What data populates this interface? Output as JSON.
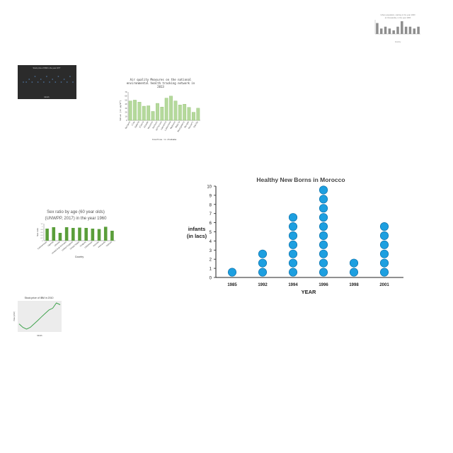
{
  "chart_data": [
    {
      "type": "scatter",
      "title": "Healthy New Borns in Morocco",
      "xlabel": "YEAR",
      "ylabel": "infants\n(in lacs)",
      "ylabel_lines": [
        "infants",
        "(in lacs)"
      ],
      "categories": [
        "1985",
        "1992",
        "1994",
        "1996",
        "1998",
        "2001"
      ],
      "values": [
        1,
        3,
        7,
        10,
        2,
        6
      ],
      "yticks": [
        "0",
        "1",
        "2",
        "3",
        "4",
        "5",
        "6",
        "7",
        "8",
        "9",
        "10"
      ],
      "ylim": [
        0,
        10
      ],
      "grid": false,
      "colors": {
        "dot": "#1d9fe0",
        "dot_stroke": "#0a6fa8",
        "title": "#444444",
        "axis": "#222222"
      }
    },
    {
      "type": "bar",
      "title": "Air quality Measures on the National Environmental Health Tracking Network in 2013",
      "title_lines": [
        "Air quality Measures on the national",
        "environmental health tracking network in",
        "2013"
      ],
      "xlabel": "Counties in Alabama",
      "ylabel": "Value (in µg/m³)",
      "categories": [
        "Baldwin",
        "Clay",
        "DeKalb",
        "Elmore",
        "Etowah",
        "Houston",
        "Jackson",
        "Jefferson",
        "Lawrence",
        "Limestone",
        "Madison",
        "Mobile",
        "Montgomery",
        "Morgan",
        "Russell",
        "Shelby"
      ],
      "values": [
        48,
        50,
        45,
        35,
        36,
        22,
        42,
        33,
        55,
        60,
        48,
        38,
        40,
        32,
        20,
        30
      ],
      "ylim": [
        0,
        70
      ],
      "colors": {
        "bar": "#b5d99c",
        "bar_stroke": "#7fb45a"
      }
    },
    {
      "type": "bar",
      "title": "Sex ratio by age (60 year olds) (UNWPP, 2017) in the year 1960",
      "title_lines": [
        "Sex ratio by age (60 year olds)",
        "(UNWPP, 2017) in the year 1960"
      ],
      "xlabel": "Country",
      "ylabel": "Sex ratio",
      "categories": [
        "Turkmenistan",
        "Uganda",
        "Ukraine",
        "United Arab Emirates",
        "United Kingdom",
        "United States",
        "Uruguay",
        "Uzbekistan",
        "Vanuatu",
        "Venezuela",
        "Vietnam"
      ],
      "values": [
        0.85,
        0.95,
        0.55,
        0.95,
        0.9,
        0.92,
        0.9,
        0.85,
        0.82,
        0.98,
        0.7
      ],
      "ylim": [
        0,
        1.2
      ],
      "colors": {
        "bar": "#5a9e3a"
      }
    },
    {
      "type": "line",
      "title": "Stock price of IBM in 2010",
      "xlabel": "Month",
      "ylabel": "Price (USD)",
      "x": [
        "Jan",
        "Feb",
        "Mar",
        "Apr",
        "May",
        "Jun",
        "Jul",
        "Aug",
        "Sep",
        "Oct",
        "Nov",
        "Dec"
      ],
      "values": [
        126,
        125,
        124.5,
        125,
        126,
        127,
        128,
        129,
        130,
        130.5,
        132,
        131.5
      ],
      "colors": {
        "line": "#3fa34d",
        "panel": "#ececec"
      }
    },
    {
      "type": "scatter",
      "title": "Stock price of IBM in the year 1977",
      "xlabel": "Month",
      "values": [
        3,
        3,
        4,
        3,
        5,
        3,
        4,
        3,
        5,
        3,
        4,
        3,
        5,
        3,
        4,
        3,
        5,
        3
      ],
      "colors": {
        "background": "#2b2b2b",
        "point": "#4b6d94"
      }
    },
    {
      "type": "bar",
      "title": "Urban population, starting in the year 1960",
      "title_lines": [
        "Urban population, starting in the year 1960",
        "(in thousands), in the year 1960"
      ],
      "xlabel": "Country",
      "categories": [
        "A",
        "B",
        "C",
        "D",
        "E",
        "F",
        "G",
        "H",
        "I",
        "J",
        "K"
      ],
      "values": [
        6,
        3,
        4,
        3,
        2,
        4,
        7,
        4,
        4,
        3,
        4
      ],
      "colors": {
        "bar": "#8e8e8e"
      }
    }
  ]
}
